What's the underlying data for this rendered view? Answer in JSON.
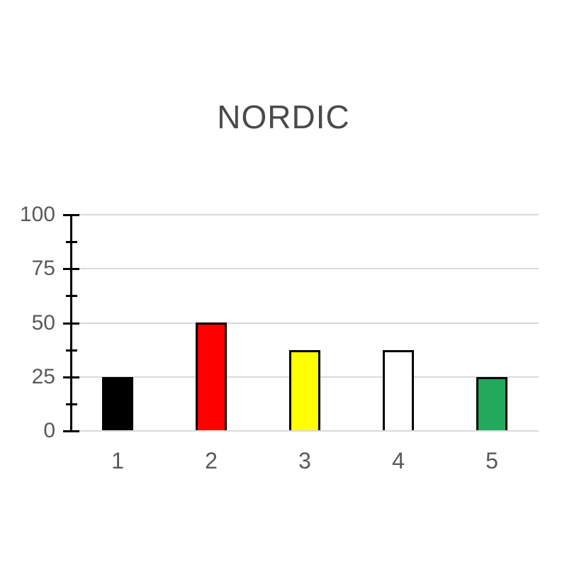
{
  "page": {
    "background": "#FFFFFF"
  },
  "chart_data": {
    "type": "bar",
    "title": "NORDIC",
    "categories": [
      "1",
      "2",
      "3",
      "4",
      "5"
    ],
    "values": [
      25,
      50,
      37.5,
      37.5,
      25
    ],
    "bar_colors": [
      "#000000",
      "#FF0000",
      "#FFFF00",
      "#FFFFFF",
      "#22A95C"
    ],
    "bar_border_color": "#000000",
    "xlabel": "",
    "ylabel": "",
    "ylim": [
      0,
      100
    ],
    "yticks": [
      0,
      25,
      50,
      75,
      100
    ],
    "ytick_labels": [
      "0",
      "25",
      "50",
      "75",
      "100"
    ],
    "minor_tick_interval": 12.5,
    "grid": "horizontal",
    "gridline_color": "#D9D9D9",
    "axis_color": "#000000",
    "tick_label_color": "#595959",
    "title_color": "#4A4A4A",
    "legend_position": "none"
  }
}
